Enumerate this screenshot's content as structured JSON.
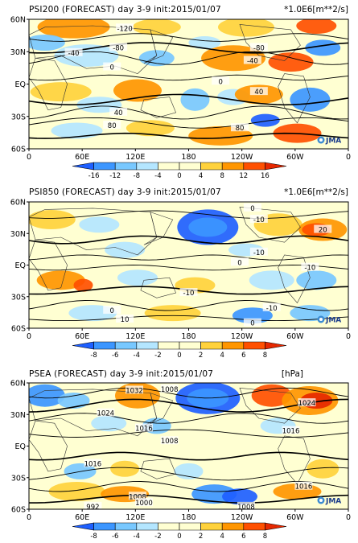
{
  "chart_data": [
    {
      "type": "heatmap",
      "title": "PSI200 (FORECAST) day 3-9 init:2015/01/07",
      "units": "*1.0E6[m**2/s]",
      "y_ticks": [
        "60N",
        "30N",
        "EQ",
        "30S",
        "60S"
      ],
      "x_ticks": [
        "0",
        "60E",
        "120E",
        "180",
        "120W",
        "60W",
        "0"
      ],
      "colorbar_ticks": [
        "-16",
        "-12",
        "-8",
        "-4",
        "0",
        "4",
        "8",
        "12",
        "16"
      ],
      "contour_labels": [
        "-120",
        "-80",
        "-40",
        "-40",
        "-80",
        "0",
        "40",
        "40",
        "80",
        "80",
        "0"
      ],
      "logo": "JMA"
    },
    {
      "type": "heatmap",
      "title": "PSI850 (FORECAST) day 3-9 init:2015/01/07",
      "units": "*1.0E6[m**2/s]",
      "y_ticks": [
        "60N",
        "30N",
        "EQ",
        "30S",
        "60S"
      ],
      "x_ticks": [
        "0",
        "60E",
        "120E",
        "180",
        "120W",
        "60W",
        "0"
      ],
      "colorbar_ticks": [
        "-8",
        "-6",
        "-4",
        "-2",
        "0",
        "2",
        "4",
        "6",
        "8"
      ],
      "contour_labels": [
        "-10",
        "20",
        "0",
        "-10",
        "0",
        "-10",
        "0",
        "-10",
        "-10",
        "10",
        "0"
      ],
      "logo": "JMA"
    },
    {
      "type": "heatmap",
      "title": "PSEA (FORECAST) day 3-9 init:2015/01/07",
      "units": "[hPa]",
      "y_ticks": [
        "60N",
        "30N",
        "EQ",
        "30S",
        "60S"
      ],
      "x_ticks": [
        "0",
        "60E",
        "120E",
        "180",
        "120W",
        "60W",
        "0"
      ],
      "colorbar_ticks": [
        "-8",
        "-6",
        "-4",
        "-2",
        "0",
        "2",
        "4",
        "6",
        "8"
      ],
      "contour_labels": [
        "1032",
        "1008",
        "1024",
        "1024",
        "1016",
        "1016",
        "1008",
        "1016",
        "1016",
        "1008",
        "1000",
        "992",
        "1008"
      ],
      "logo": "JMA"
    }
  ]
}
